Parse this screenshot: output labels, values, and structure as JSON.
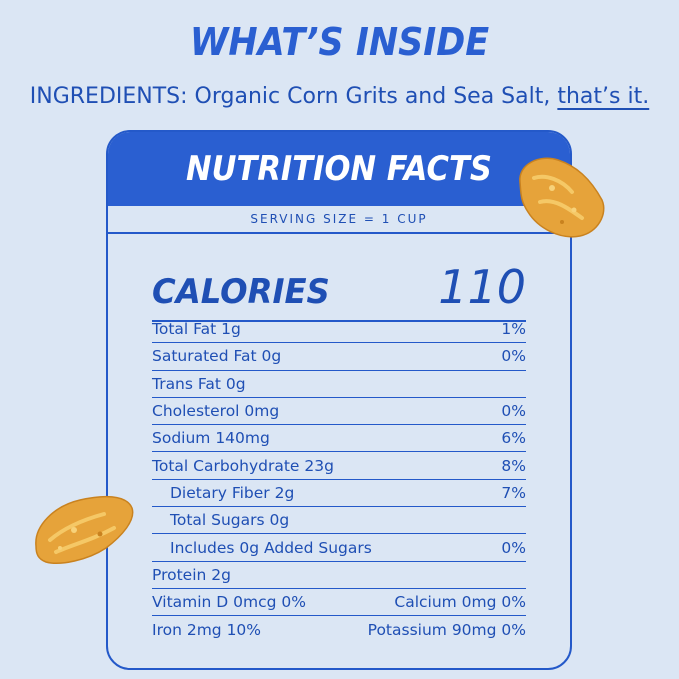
{
  "header": {
    "title": "WHAT’S INSIDE",
    "ingredients_text": "INGREDIENTS: Organic Corn Grits and Sea Salt, ",
    "ingredients_tail": "that’s it."
  },
  "label": {
    "title": "NUTRITION FACTS",
    "serving_size": "SERVING SIZE = 1 CUP",
    "calories_label": "CALORIES",
    "calories_value": "110",
    "rows": [
      {
        "name": "Total Fat 1g",
        "value": "1%"
      },
      {
        "name": "Saturated Fat 0g",
        "value": "0%"
      },
      {
        "name": "Trans Fat 0g",
        "value": ""
      },
      {
        "name": "Cholesterol 0mg",
        "value": "0%"
      },
      {
        "name": "Sodium 140mg",
        "value": "6%"
      },
      {
        "name": "Total Carbohydrate 23g",
        "value": "8%"
      },
      {
        "name": "Dietary Fiber 2g",
        "value": "7%"
      },
      {
        "name": "Total Sugars 0g",
        "value": ""
      },
      {
        "name": "Includes 0g Added Sugars",
        "value": "0%"
      },
      {
        "name": "Protein 2g",
        "value": ""
      },
      {
        "name": "Vitamin D 0mcg 0%",
        "value": "Calcium 0mg 0%"
      },
      {
        "name": "Iron 2mg 10%",
        "value": "Potassium 90mg 0%"
      }
    ]
  },
  "colors": {
    "background": "#dbe6f4",
    "brand_blue": "#2a5fd1",
    "text_blue": "#1f4fb4",
    "flake": "#e8a93a"
  }
}
